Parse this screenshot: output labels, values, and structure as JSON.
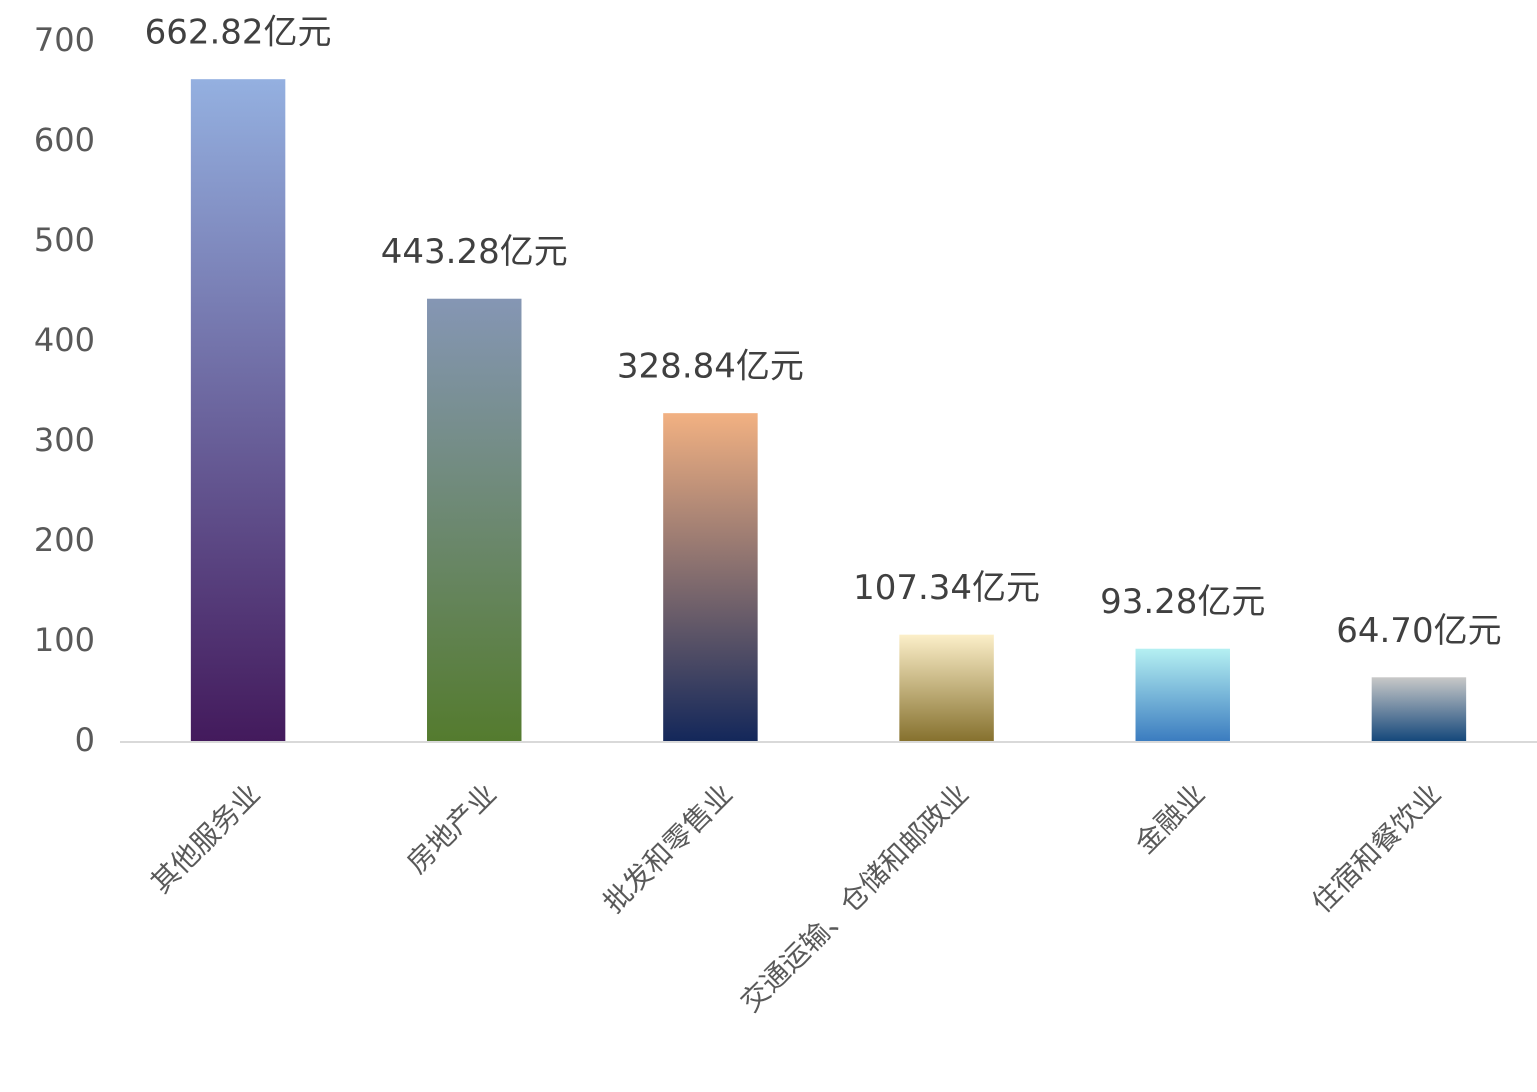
{
  "chart_data": {
    "type": "bar",
    "categories": [
      "其他服务业",
      "房地产业",
      "批发和零售业",
      "交通运输、仓储和邮政业",
      "金融业",
      "住宿和餐饮业"
    ],
    "values": [
      662.82,
      443.28,
      328.84,
      107.34,
      93.28,
      64.7
    ],
    "value_labels": [
      "662.82亿元",
      "443.28亿元",
      "328.84亿元",
      "107.34亿元",
      "93.28亿元",
      "64.70亿元"
    ],
    "gradients": [
      [
        "#94b0e0",
        "#431a5c"
      ],
      [
        "#8596b4",
        "#547b2e"
      ],
      [
        "#f2b182",
        "#13275a"
      ],
      [
        "#fcefc9",
        "#85702d"
      ],
      [
        "#b5f0f2",
        "#3a7bbf"
      ],
      [
        "#c8c8c8",
        "#12467a"
      ]
    ],
    "ylim": [
      0,
      700
    ],
    "yticks": [
      0,
      100,
      200,
      300,
      400,
      500,
      600,
      700
    ],
    "grid": false
  }
}
